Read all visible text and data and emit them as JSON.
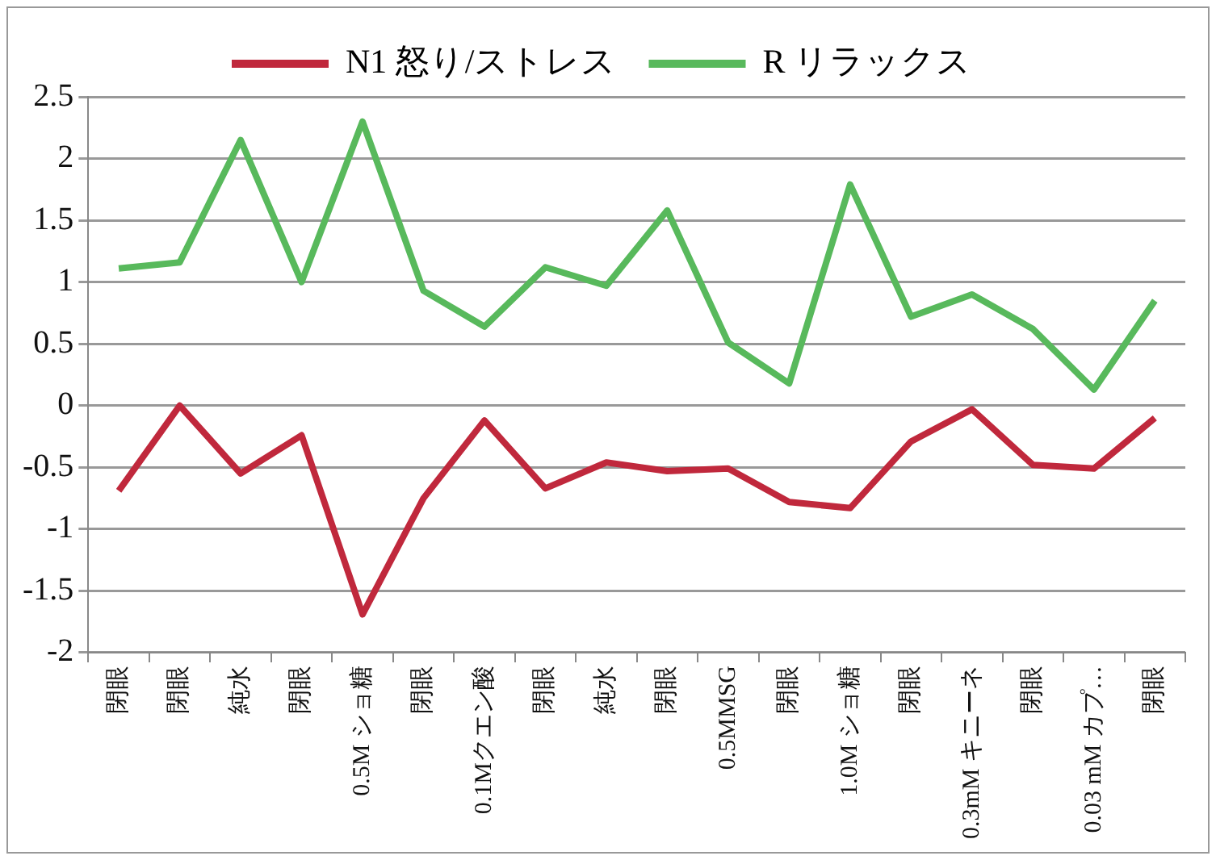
{
  "chart_data": {
    "type": "line",
    "categories": [
      "閉眼",
      "閉眼",
      "純水",
      "閉眼",
      "0.5M ショ糖",
      "閉眼",
      "0.1Mクエン酸",
      "閉眼",
      "純水",
      "閉眼",
      "0.5MMSG",
      "閉眼",
      "1.0M ショ糖",
      "閉眼",
      "0.3mM キニーネ",
      "閉眼",
      "0.03 mM カプ…",
      "閉眼"
    ],
    "series": [
      {
        "name": "N1 怒り/ストレス",
        "color": "#c0283c",
        "values": [
          -0.69,
          0,
          -0.55,
          -0.24,
          -1.69,
          -0.75,
          -0.12,
          -0.67,
          -0.46,
          -0.53,
          -0.51,
          -0.78,
          -0.83,
          -0.29,
          -0.03,
          -0.48,
          -0.51,
          -0.1
        ]
      },
      {
        "name": "R リラックス",
        "color": "#58b95c",
        "values": [
          1.11,
          1.16,
          2.15,
          1,
          2.3,
          0.93,
          0.64,
          1.12,
          0.97,
          1.58,
          0.51,
          0.18,
          1.79,
          0.72,
          0.9,
          0.62,
          0.13,
          0.85
        ]
      }
    ],
    "ylim": [
      -2,
      2.5
    ],
    "yticks": [
      -2,
      -1.5,
      -1,
      -0.5,
      0,
      0.5,
      1,
      1.5,
      2,
      2.5
    ],
    "grid": "y",
    "legend": "top",
    "marker": "none",
    "line_style": "solid"
  }
}
